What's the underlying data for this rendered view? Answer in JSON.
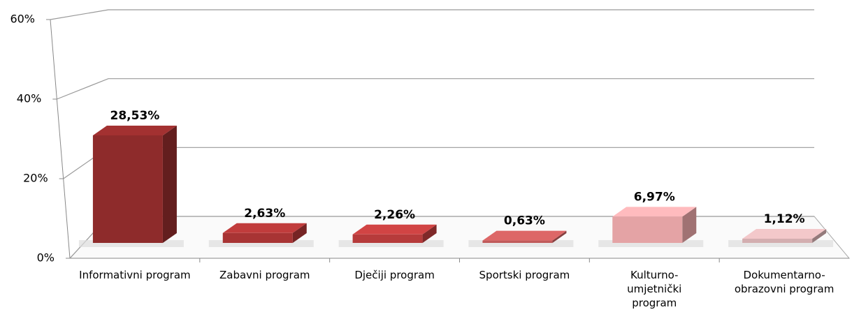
{
  "chart_data": {
    "type": "bar3d",
    "categories": [
      "Informativni program",
      "Zabavni program",
      "Dječiji program",
      "Sportski program",
      "Kulturno-umjetnički program",
      "Dokumentarno-obrazovni program"
    ],
    "values": [
      28.53,
      2.63,
      2.26,
      0.63,
      6.97,
      1.12
    ],
    "value_labels": [
      "28,53%",
      "2,63%",
      "2,26%",
      "0,63%",
      "6,97%",
      "1,12%"
    ],
    "colors": [
      "#8e2b2b",
      "#a83434",
      "#b63b3b",
      "#c05a5a",
      "#e4a3a5",
      "#d3aeb0"
    ],
    "ylim": [
      0,
      60
    ],
    "yticks": [
      {
        "value": 0,
        "label": "0%"
      },
      {
        "value": 20,
        "label": "20%"
      },
      {
        "value": 40,
        "label": "40%"
      },
      {
        "value": 60,
        "label": "60%"
      }
    ],
    "grid": true
  }
}
